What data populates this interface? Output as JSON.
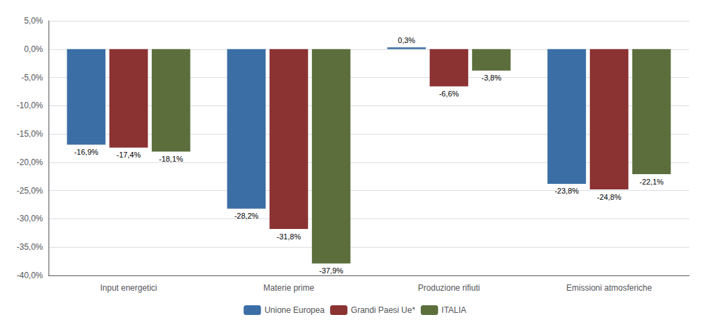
{
  "chart_data": {
    "type": "bar",
    "categories": [
      "Input energetici",
      "Materie prime",
      "Produzione rifiuti",
      "Emissioni atmosferiche"
    ],
    "series": [
      {
        "name": "Unione Europea",
        "color": "#3B6EA5",
        "values": [
          -16.9,
          -28.2,
          0.3,
          -23.8
        ],
        "value_labels": [
          "-16,9%",
          "-28,2%",
          "0,3%",
          "-23,8%"
        ]
      },
      {
        "name": "Grandi Paesi Ue*",
        "color": "#8B3232",
        "values": [
          -17.4,
          -31.8,
          -6.6,
          -24.8
        ],
        "value_labels": [
          "-17,4%",
          "-31,8%",
          "-6,6%",
          "-24,8%"
        ]
      },
      {
        "name": "ITALIA",
        "color": "#5B6E3C",
        "values": [
          -18.1,
          -37.9,
          -3.8,
          -22.1
        ],
        "value_labels": [
          "-18,1%",
          "-37,9%",
          "-3,8%",
          "-22,1%"
        ]
      }
    ],
    "ylim": [
      -40,
      5
    ],
    "yticks": [
      {
        "value": 5,
        "label": "5,0%"
      },
      {
        "value": 0,
        "label": "0,0%"
      },
      {
        "value": -5,
        "label": "-5,0%"
      },
      {
        "value": -10,
        "label": "-10,0%"
      },
      {
        "value": -15,
        "label": "-15,0%"
      },
      {
        "value": -20,
        "label": "-20,0%"
      },
      {
        "value": -25,
        "label": "-25,0%"
      },
      {
        "value": -30,
        "label": "-30,0%"
      },
      {
        "value": -35,
        "label": "-35,0%"
      },
      {
        "value": -40,
        "label": "-40,0%"
      }
    ],
    "grid": true,
    "legend": "bottom",
    "data_labels": true
  }
}
